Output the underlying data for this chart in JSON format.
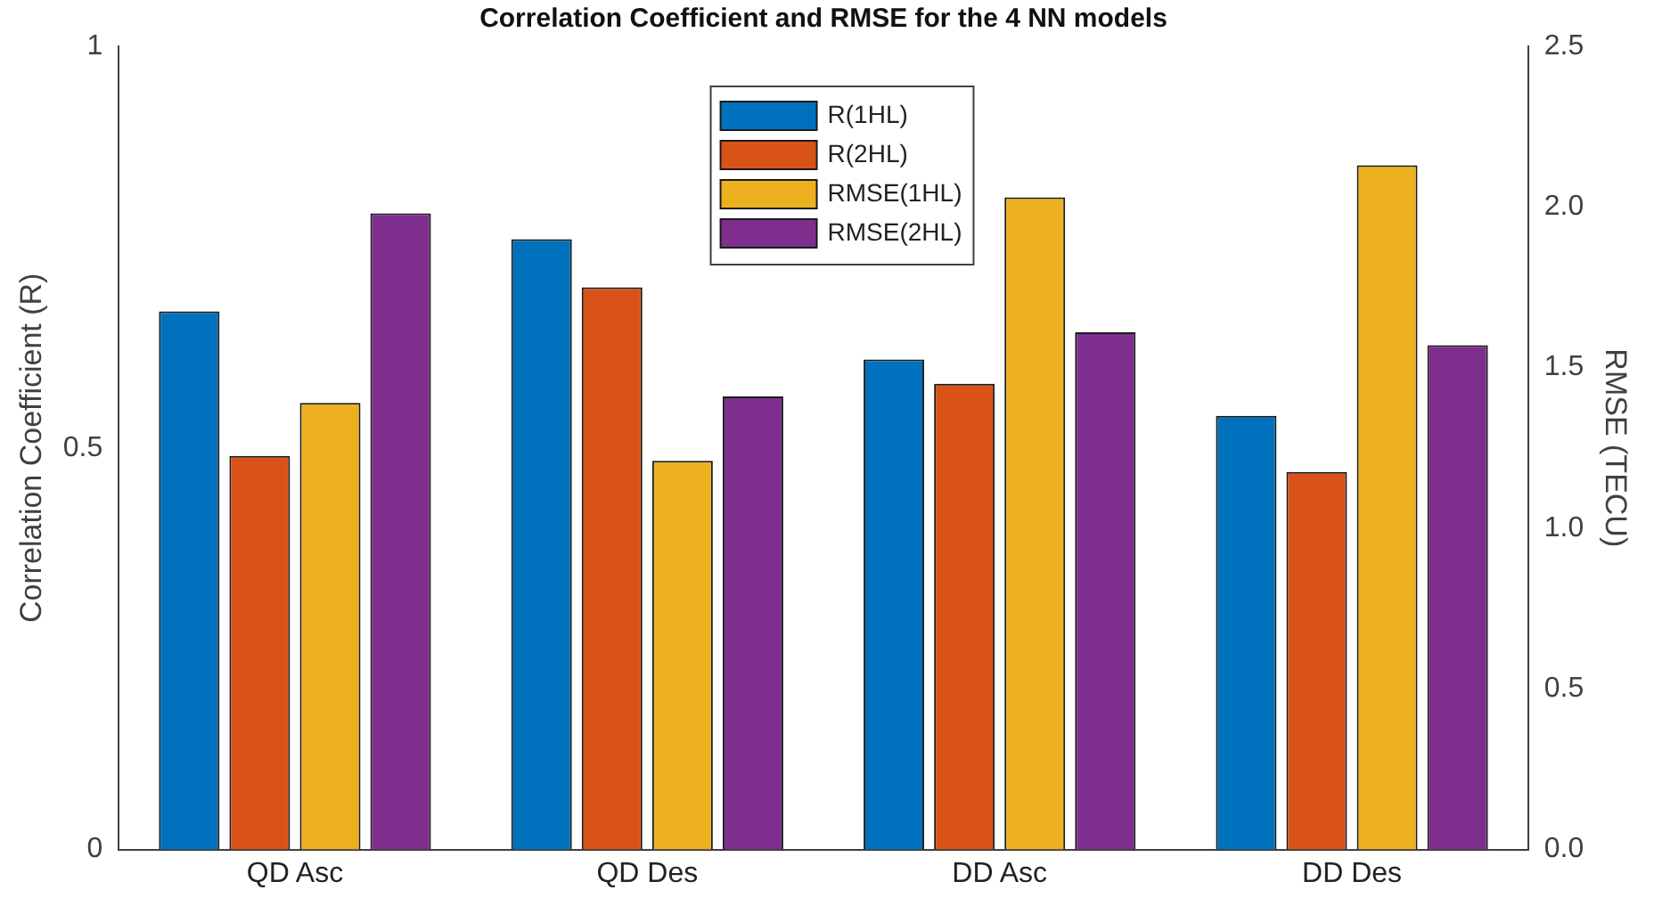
{
  "chart_data": {
    "type": "bar",
    "title": "Correlation Coefficient and RMSE for the 4 NN models",
    "categories": [
      "QD Asc",
      "QD Des",
      "DD Asc",
      "DD Des"
    ],
    "series": [
      {
        "name": "R(1HL)",
        "color": "#0072bd",
        "values": [
          0.67,
          0.76,
          0.61,
          0.54
        ]
      },
      {
        "name": "R(2HL)",
        "color": "#d95319",
        "values": [
          0.49,
          0.7,
          0.58,
          0.47
        ]
      },
      {
        "name": "RMSE(1HL)",
        "color": "#edb120",
        "axis": "y2",
        "values": [
          1.39,
          1.21,
          2.03,
          2.13
        ]
      },
      {
        "name": "RMSE(2HL)",
        "color": "#7e2f8e",
        "axis": "y2",
        "values": [
          1.98,
          1.41,
          1.61,
          1.57
        ]
      }
    ],
    "ylabel": "Correlation Coefficient (R)",
    "y2label": "RMSE (TECU)",
    "ylim": [
      0,
      1
    ],
    "yticks": [
      0,
      0.5,
      1
    ],
    "y2lim": [
      0,
      2.5
    ],
    "y2ticks": [
      {
        "value": 0,
        "label": "0.0"
      },
      0.5,
      {
        "value": 1,
        "label": "1.0"
      },
      1.5,
      {
        "value": 2,
        "label": "2.0"
      },
      2.5
    ],
    "legend": "top",
    "grid": false
  }
}
